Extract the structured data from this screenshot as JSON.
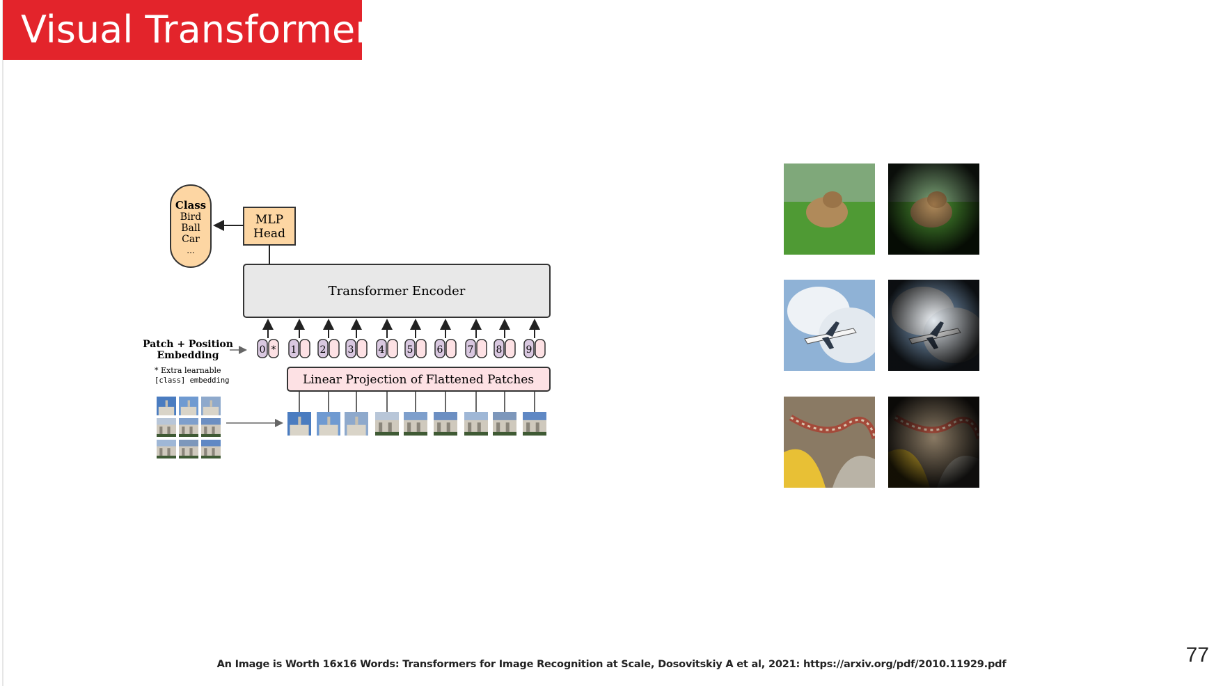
{
  "slide": {
    "title": "Visual Transformer",
    "footer": "An Image is Worth 16x16 Words: Transformers for Image Recognition at Scale, Dosovitskiy A et al, 2021: https://arxiv.org/pdf/2010.11929.pdf",
    "page_number": "77"
  },
  "diagram": {
    "class_box": {
      "title": "Class",
      "items": [
        "Bird",
        "Ball",
        "Car",
        "..."
      ]
    },
    "mlp_head": [
      "MLP",
      "Head"
    ],
    "encoder_label": "Transformer Encoder",
    "embedding_label": [
      "Patch + Position",
      "Embedding"
    ],
    "embedding_note": [
      "* Extra learnable",
      "[class] embedding"
    ],
    "projection_label": "Linear Projection of Flattened Patches",
    "tokens": [
      "0",
      "1",
      "2",
      "3",
      "4",
      "5",
      "6",
      "7",
      "8",
      "9"
    ],
    "class_token_marker": "*",
    "colors": {
      "class_box_fill": "#fdd6a3",
      "class_box_stroke": "#333333",
      "encoder_fill": "#e8e8e8",
      "projection_fill": "#fde1e4",
      "position_token_fill": "#d9c8e0",
      "patch_token_fill": "#fde1e4"
    }
  },
  "attention_examples": {
    "rows": [
      {
        "subject": "dog-on-grass"
      },
      {
        "subject": "airplane-in-clouds"
      },
      {
        "subject": "snake-on-leaves"
      }
    ],
    "columns": [
      "input-image",
      "attention-map"
    ]
  },
  "colors": {
    "title_banner": "#e3242b",
    "title_text": "#ffffff"
  }
}
